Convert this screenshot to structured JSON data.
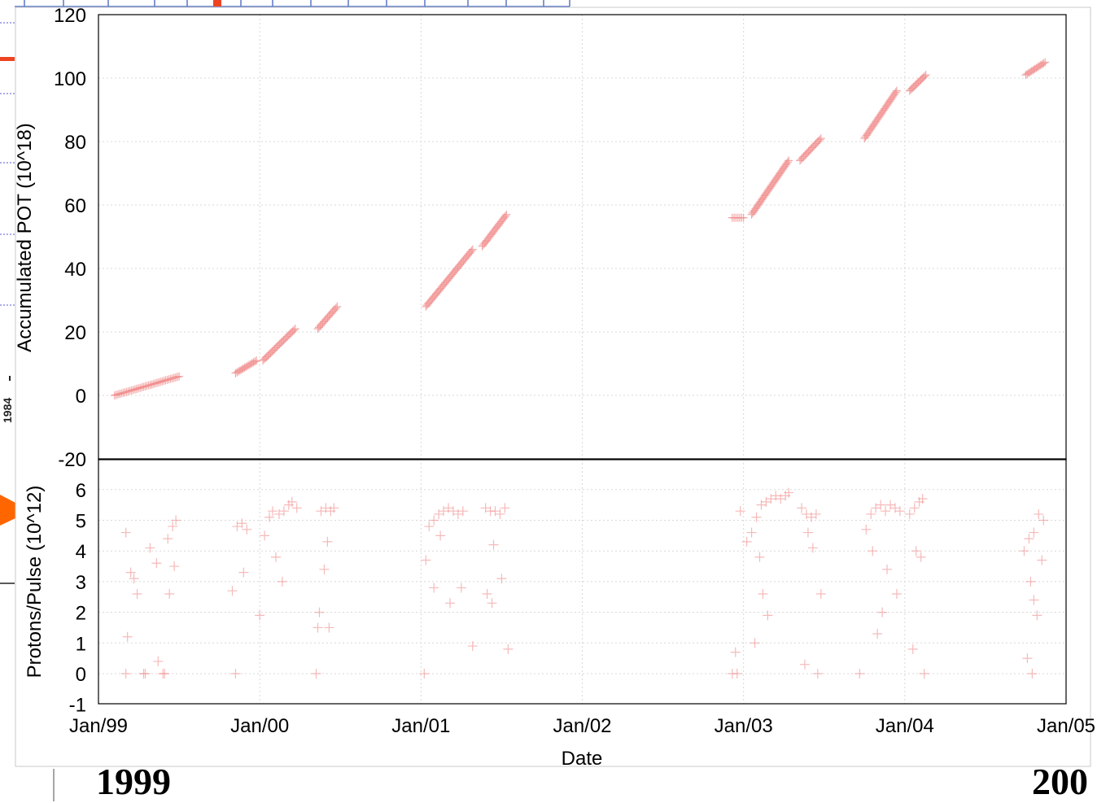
{
  "chart_data": [
    {
      "type": "scatter",
      "ylabel": "Accumulated POT (10^18)",
      "xlabel": "",
      "ylim": [
        -20,
        120
      ],
      "yticks": [
        "120",
        "100",
        "80",
        "60",
        "40",
        "20",
        "0",
        "-20"
      ],
      "grid": true,
      "marker": "+",
      "color": "#f08a8a",
      "x_unit": "years since Jan 1999",
      "segments": [
        {
          "x": [
            0.1,
            0.5
          ],
          "y": [
            0,
            6
          ]
        },
        {
          "x": [
            0.85,
            0.98
          ],
          "y": [
            7,
            11
          ]
        },
        {
          "x": [
            1.02,
            1.22
          ],
          "y": [
            11,
            21
          ]
        },
        {
          "x": [
            1.36,
            1.48
          ],
          "y": [
            21,
            28
          ]
        },
        {
          "x": [
            2.03,
            2.32
          ],
          "y": [
            28,
            46
          ]
        },
        {
          "x": [
            2.38,
            2.53
          ],
          "y": [
            47,
            57
          ]
        },
        {
          "x": [
            3.93,
            4.0
          ],
          "y": [
            56,
            56
          ]
        },
        {
          "x": [
            4.05,
            4.28
          ],
          "y": [
            57,
            74
          ]
        },
        {
          "x": [
            4.35,
            4.48
          ],
          "y": [
            74,
            81
          ]
        },
        {
          "x": [
            4.75,
            4.95
          ],
          "y": [
            81,
            96
          ]
        },
        {
          "x": [
            5.03,
            5.13
          ],
          "y": [
            96,
            101
          ]
        },
        {
          "x": [
            5.75,
            5.87
          ],
          "y": [
            101,
            105
          ]
        }
      ]
    },
    {
      "type": "scatter",
      "ylabel": "Protons/Pulse (10^12)",
      "xlabel": "Date",
      "ylim": [
        -1,
        7
      ],
      "yticks": [
        "6",
        "5",
        "4",
        "3",
        "2",
        "1",
        "0",
        "-1"
      ],
      "x_categories": [
        "Jan/99",
        "Jan/00",
        "Jan/01",
        "Jan/02",
        "Jan/03",
        "Jan/04",
        "Jan/05"
      ],
      "grid": true,
      "marker": "+",
      "color": "#f08a8a",
      "points": [
        [
          0.17,
          4.6
        ],
        [
          0.2,
          3.3
        ],
        [
          0.22,
          3.1
        ],
        [
          0.24,
          2.6
        ],
        [
          0.18,
          1.2
        ],
        [
          0.17,
          0
        ],
        [
          0.28,
          0
        ],
        [
          0.29,
          0
        ],
        [
          0.4,
          0
        ],
        [
          0.41,
          0
        ],
        [
          0.32,
          4.1
        ],
        [
          0.36,
          3.6
        ],
        [
          0.43,
          4.4
        ],
        [
          0.46,
          4.8
        ],
        [
          0.48,
          5.0
        ],
        [
          0.47,
          3.5
        ],
        [
          0.44,
          2.6
        ],
        [
          0.37,
          0.4
        ],
        [
          0.83,
          2.7
        ],
        [
          0.86,
          4.8
        ],
        [
          0.89,
          4.9
        ],
        [
          0.92,
          4.7
        ],
        [
          0.9,
          3.3
        ],
        [
          0.85,
          0
        ],
        [
          1.03,
          4.5
        ],
        [
          1.06,
          5.1
        ],
        [
          1.08,
          5.3
        ],
        [
          1.12,
          5.2
        ],
        [
          1.15,
          5.3
        ],
        [
          1.18,
          5.5
        ],
        [
          1.2,
          5.6
        ],
        [
          1.23,
          5.4
        ],
        [
          1.1,
          3.8
        ],
        [
          1.14,
          3.0
        ],
        [
          1.0,
          1.9
        ],
        [
          1.35,
          0
        ],
        [
          1.36,
          1.5
        ],
        [
          1.38,
          5.3
        ],
        [
          1.41,
          5.4
        ],
        [
          1.44,
          5.3
        ],
        [
          1.46,
          5.4
        ],
        [
          1.42,
          4.3
        ],
        [
          1.4,
          3.4
        ],
        [
          1.37,
          2.0
        ],
        [
          1.43,
          1.5
        ],
        [
          2.02,
          0
        ],
        [
          2.03,
          3.7
        ],
        [
          2.05,
          4.8
        ],
        [
          2.08,
          5.0
        ],
        [
          2.11,
          5.2
        ],
        [
          2.14,
          5.3
        ],
        [
          2.17,
          5.4
        ],
        [
          2.2,
          5.3
        ],
        [
          2.23,
          5.2
        ],
        [
          2.26,
          5.3
        ],
        [
          2.12,
          4.5
        ],
        [
          2.08,
          2.8
        ],
        [
          2.18,
          2.3
        ],
        [
          2.25,
          2.8
        ],
        [
          2.32,
          0.9
        ],
        [
          2.4,
          5.4
        ],
        [
          2.43,
          5.3
        ],
        [
          2.46,
          5.3
        ],
        [
          2.49,
          5.2
        ],
        [
          2.52,
          5.4
        ],
        [
          2.45,
          4.2
        ],
        [
          2.5,
          3.1
        ],
        [
          2.41,
          2.6
        ],
        [
          2.44,
          2.3
        ],
        [
          2.54,
          0.8
        ],
        [
          3.93,
          0
        ],
        [
          3.96,
          0
        ],
        [
          3.98,
          5.3
        ],
        [
          3.95,
          0.7
        ],
        [
          4.02,
          4.3
        ],
        [
          4.05,
          4.6
        ],
        [
          4.08,
          5.1
        ],
        [
          4.11,
          5.5
        ],
        [
          4.14,
          5.6
        ],
        [
          4.17,
          5.7
        ],
        [
          4.2,
          5.8
        ],
        [
          4.23,
          5.7
        ],
        [
          4.26,
          5.8
        ],
        [
          4.28,
          5.9
        ],
        [
          4.1,
          3.8
        ],
        [
          4.12,
          2.6
        ],
        [
          4.15,
          1.9
        ],
        [
          4.07,
          1.0
        ],
        [
          4.36,
          5.4
        ],
        [
          4.39,
          5.2
        ],
        [
          4.42,
          5.1
        ],
        [
          4.45,
          5.2
        ],
        [
          4.4,
          4.6
        ],
        [
          4.43,
          4.1
        ],
        [
          4.48,
          2.6
        ],
        [
          4.38,
          0.3
        ],
        [
          4.46,
          0
        ],
        [
          4.72,
          0
        ],
        [
          4.76,
          4.7
        ],
        [
          4.79,
          5.2
        ],
        [
          4.82,
          5.4
        ],
        [
          4.85,
          5.5
        ],
        [
          4.88,
          5.3
        ],
        [
          4.91,
          5.5
        ],
        [
          4.94,
          5.4
        ],
        [
          4.97,
          5.3
        ],
        [
          4.8,
          4.0
        ],
        [
          4.83,
          1.3
        ],
        [
          4.86,
          2.0
        ],
        [
          4.89,
          3.4
        ],
        [
          4.95,
          2.6
        ],
        [
          5.03,
          5.2
        ],
        [
          5.06,
          5.4
        ],
        [
          5.09,
          5.6
        ],
        [
          5.11,
          5.7
        ],
        [
          5.07,
          4.0
        ],
        [
          5.1,
          3.8
        ],
        [
          5.05,
          0.8
        ],
        [
          5.12,
          0
        ],
        [
          5.74,
          4.0
        ],
        [
          5.77,
          4.4
        ],
        [
          5.8,
          4.6
        ],
        [
          5.83,
          5.2
        ],
        [
          5.86,
          5.0
        ],
        [
          5.78,
          3.0
        ],
        [
          5.8,
          2.4
        ],
        [
          5.82,
          1.9
        ],
        [
          5.85,
          3.7
        ],
        [
          5.76,
          0.5
        ],
        [
          5.79,
          0
        ]
      ]
    }
  ],
  "footer": {
    "year_left": "1999",
    "year_right": "200"
  },
  "annotations": {
    "orange_arrow_color": "#ff6600",
    "left_edge_fragment": "1984"
  }
}
